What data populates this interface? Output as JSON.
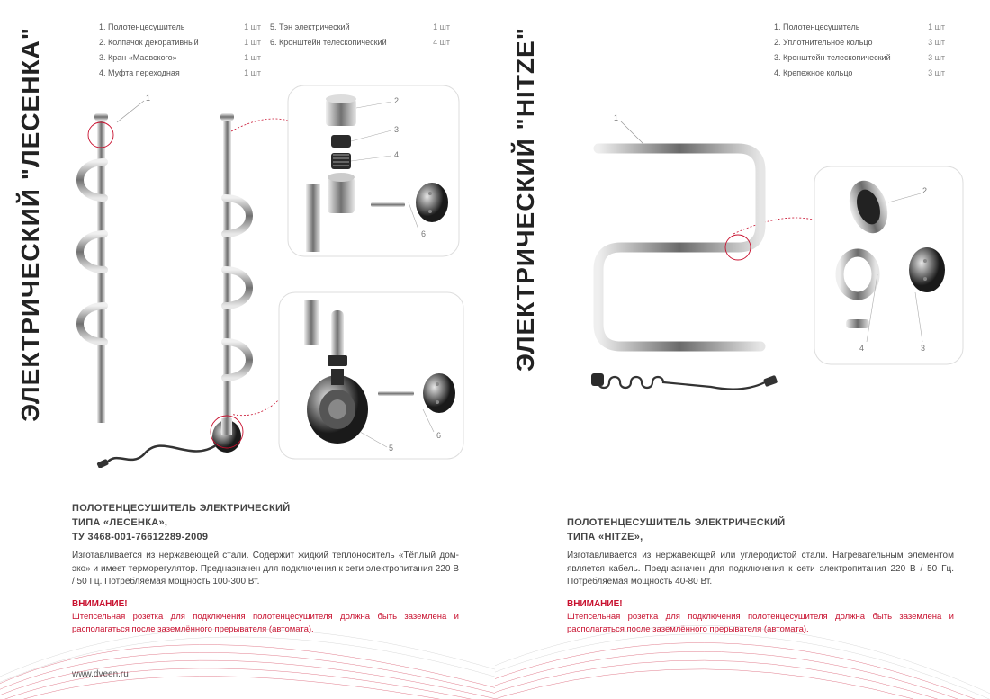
{
  "left": {
    "title": "ЭЛЕКТРИЧЕСКИЙ  \"ЛЕСЕНКА\"",
    "parts_a": [
      {
        "n": "1.",
        "name": "Полотенцесушитель",
        "qty": "1 шт"
      },
      {
        "n": "2.",
        "name": "Колпачок декоративный",
        "qty": "1 шт"
      },
      {
        "n": "3.",
        "name": "Кран «Маевского»",
        "qty": "1 шт"
      },
      {
        "n": "4.",
        "name": "Муфта переходная",
        "qty": "1 шт"
      }
    ],
    "parts_b": [
      {
        "n": "5.",
        "name": "Тэн электрический",
        "qty": "1 шт"
      },
      {
        "n": "6.",
        "name": "Кронштейн телескопический",
        "qty": "4 шт"
      }
    ],
    "heading1": "ПОЛОТЕНЦЕСУШИТЕЛЬ ЭЛЕКТРИЧЕСКИЙ",
    "heading2": "ТИПА «ЛЕСЕНКА»,",
    "heading3": "ТУ 3468-001-76612289-2009",
    "desc": "Изготавливается из нержавеющей стали. Содержит жидкий теплоноситель «Тёплый дом-эко» и имеет терморегулятор. Предназначен для подключения к сети электропитания 220 В / 50 Гц. Потребляемая мощность 100-300 Вт.",
    "warn_t": "ВНИМАНИЕ!",
    "warn": "Штепсельная розетка для подключения полотенцесушителя должна быть заземлена и располагаться после заземлённого прерывателя (автомата).",
    "url": "www.dveen.ru",
    "callouts": {
      "c1": "1",
      "c2": "2",
      "c3": "3",
      "c4": "4",
      "c5": "5",
      "c6": "6"
    },
    "colors": {
      "line": "#444",
      "thin": "#999",
      "accent": "#c8102e",
      "metal_dark": "#2b2b2b",
      "metal_light": "#bdbdbd"
    }
  },
  "right": {
    "title": "ЭЛЕКТРИЧЕСКИЙ  \"HITZE\"",
    "parts": [
      {
        "n": "1.",
        "name": "Полотенцесушитель",
        "qty": "1 шт"
      },
      {
        "n": "2.",
        "name": "Уплотнительное кольцо",
        "qty": "3 шт"
      },
      {
        "n": "3.",
        "name": "Кронштейн телескопический",
        "qty": "3 шт"
      },
      {
        "n": "4.",
        "name": "Крепежное кольцо",
        "qty": "3 шт"
      }
    ],
    "heading1": "ПОЛОТЕНЦЕСУШИТЕЛЬ ЭЛЕКТРИЧЕСКИЙ",
    "heading2": "ТИПА «HITZE»,",
    "desc": "Изготавливается из нержавеющей или углеродистой стали. Нагревательным элементом является кабель. Предназначен для подключения к сети электропитания 220 В / 50 Гц. Потребляемая мощность 40-80 Вт.",
    "warn_t": "ВНИМАНИЕ!",
    "warn": "Штепсельная розетка для подключения полотенцесушителя должна быть заземлена и располагаться после заземлённого прерывателя (автомата).",
    "callouts": {
      "c1": "1",
      "c2": "2",
      "c3": "3",
      "c4": "4"
    },
    "colors": {
      "line": "#444",
      "thin": "#999",
      "accent": "#c8102e"
    }
  }
}
